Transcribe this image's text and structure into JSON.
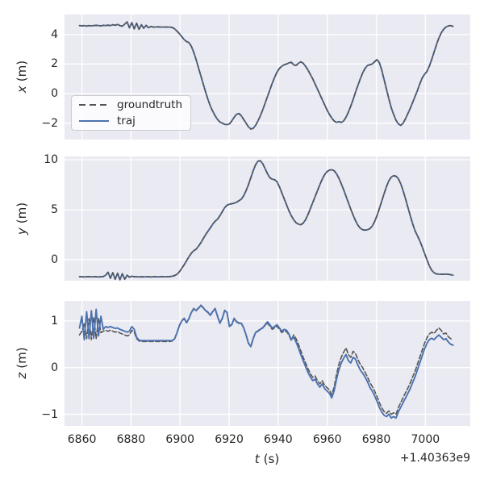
{
  "figure": {
    "background": "#ffffff",
    "axes_background": "#eaeaf2",
    "grid_color": "#ffffff",
    "text_color": "#262626",
    "xlabel": "t (s)",
    "xlabel_var": "t",
    "xlabel_unit": "(s)",
    "x_offset_text": "+1.40363e9",
    "xticks": [
      6860,
      6880,
      6900,
      6920,
      6940,
      6960,
      6980,
      7000
    ],
    "xlim": [
      6852.9,
      7018.3
    ],
    "x_start": 6859,
    "x_step": 0.97,
    "legend": {
      "position": "upper-left-of-first-subplot",
      "items": [
        {
          "label": "groundtruth",
          "color": "#555555",
          "style": "dashed"
        },
        {
          "label": "traj",
          "color": "#4c72b0",
          "style": "solid"
        }
      ]
    }
  },
  "chart_data": [
    {
      "id": "x",
      "type": "line",
      "ylabel": "x (m)",
      "ylabel_var": "x",
      "ylabel_unit": "(m)",
      "ylim": [
        -3.11,
        5.35
      ],
      "yticks": [
        -2,
        0,
        2,
        4
      ],
      "grid": true,
      "series": [
        {
          "name": "groundtruth",
          "style": "dashed",
          "color": "#555555",
          "values": null,
          "note": "overlaps traj"
        },
        {
          "name": "traj",
          "style": "solid",
          "color": "#4c72b0",
          "values": [
            4.6,
            4.58,
            4.6,
            4.57,
            4.6,
            4.58,
            4.6,
            4.62,
            4.6,
            4.58,
            4.62,
            4.6,
            4.63,
            4.6,
            4.66,
            4.62,
            4.68,
            4.6,
            4.56,
            4.7,
            4.85,
            4.45,
            4.8,
            4.38,
            4.76,
            4.35,
            4.66,
            4.42,
            4.62,
            4.46,
            4.54,
            4.5,
            4.5,
            4.52,
            4.5,
            4.5,
            4.5,
            4.5,
            4.5,
            4.47,
            4.38,
            4.22,
            4.05,
            3.85,
            3.65,
            3.52,
            3.45,
            3.2,
            2.8,
            2.3,
            1.75,
            1.2,
            0.65,
            0.1,
            -0.4,
            -0.85,
            -1.2,
            -1.5,
            -1.75,
            -1.92,
            -2.0,
            -2.08,
            -2.1,
            -2.05,
            -1.85,
            -1.6,
            -1.4,
            -1.35,
            -1.5,
            -1.75,
            -2.0,
            -2.25,
            -2.4,
            -2.35,
            -2.15,
            -1.85,
            -1.5,
            -1.1,
            -0.65,
            -0.2,
            0.25,
            0.7,
            1.1,
            1.45,
            1.7,
            1.85,
            1.95,
            2.0,
            2.08,
            2.12,
            1.95,
            1.9,
            2.05,
            2.15,
            2.05,
            1.85,
            1.6,
            1.3,
            1.0,
            0.65,
            0.3,
            -0.05,
            -0.4,
            -0.75,
            -1.1,
            -1.4,
            -1.65,
            -1.85,
            -1.95,
            -1.9,
            -1.95,
            -1.85,
            -1.6,
            -1.25,
            -0.85,
            -0.4,
            0.1,
            0.55,
            1.0,
            1.4,
            1.7,
            1.9,
            1.95,
            2.0,
            2.15,
            2.3,
            2.1,
            1.6,
            0.95,
            0.3,
            -0.35,
            -0.95,
            -1.4,
            -1.8,
            -2.05,
            -2.15,
            -2.0,
            -1.7,
            -1.35,
            -1.0,
            -0.6,
            -0.2,
            0.2,
            0.65,
            1.05,
            1.3,
            1.5,
            1.85,
            2.3,
            2.8,
            3.3,
            3.75,
            4.1,
            4.35,
            4.5,
            4.58,
            4.6,
            4.55
          ]
        }
      ]
    },
    {
      "id": "y",
      "type": "line",
      "ylabel": "y (m)",
      "ylabel_var": "y",
      "ylabel_unit": "(m)",
      "ylim": [
        -2.1,
        10.32
      ],
      "yticks": [
        0,
        5,
        10
      ],
      "grid": true,
      "series": [
        {
          "name": "groundtruth",
          "style": "dashed",
          "color": "#555555",
          "values": null,
          "note": "overlaps traj"
        },
        {
          "name": "traj",
          "style": "solid",
          "color": "#4c72b0",
          "values": [
            -1.7,
            -1.7,
            -1.72,
            -1.7,
            -1.7,
            -1.71,
            -1.7,
            -1.7,
            -1.72,
            -1.7,
            -1.68,
            -1.55,
            -1.25,
            -1.85,
            -1.3,
            -1.95,
            -1.35,
            -2.0,
            -1.4,
            -1.95,
            -1.55,
            -1.75,
            -1.65,
            -1.7,
            -1.7,
            -1.72,
            -1.7,
            -1.71,
            -1.7,
            -1.7,
            -1.72,
            -1.7,
            -1.7,
            -1.71,
            -1.7,
            -1.7,
            -1.7,
            -1.7,
            -1.68,
            -1.65,
            -1.58,
            -1.45,
            -1.2,
            -0.85,
            -0.5,
            -0.1,
            0.3,
            0.65,
            0.9,
            1.05,
            1.35,
            1.7,
            2.1,
            2.5,
            2.85,
            3.2,
            3.55,
            3.85,
            4.05,
            4.4,
            4.8,
            5.2,
            5.45,
            5.55,
            5.6,
            5.65,
            5.75,
            5.9,
            6.05,
            6.4,
            6.9,
            7.5,
            8.2,
            8.9,
            9.5,
            9.85,
            9.9,
            9.6,
            9.1,
            8.6,
            8.2,
            8.05,
            8.0,
            7.8,
            7.3,
            6.7,
            6.1,
            5.5,
            4.9,
            4.4,
            4.0,
            3.7,
            3.55,
            3.5,
            3.65,
            4.0,
            4.5,
            5.1,
            5.7,
            6.3,
            6.9,
            7.5,
            8.05,
            8.5,
            8.8,
            8.95,
            9.0,
            8.9,
            8.6,
            8.15,
            7.6,
            7.0,
            6.35,
            5.7,
            5.05,
            4.45,
            3.9,
            3.45,
            3.15,
            3.0,
            2.96,
            3.0,
            3.1,
            3.35,
            3.8,
            4.4,
            5.1,
            5.85,
            6.6,
            7.3,
            7.9,
            8.25,
            8.4,
            8.35,
            8.1,
            7.6,
            6.9,
            6.1,
            5.25,
            4.4,
            3.6,
            2.9,
            2.4,
            1.9,
            1.3,
            0.65,
            0.0,
            -0.6,
            -1.05,
            -1.3,
            -1.42,
            -1.45,
            -1.45,
            -1.45,
            -1.44,
            -1.46,
            -1.5,
            -1.55
          ]
        }
      ]
    },
    {
      "id": "z",
      "type": "line",
      "ylabel": "z (m)",
      "ylabel_var": "z",
      "ylabel_unit": "(m)",
      "ylim": [
        -1.25,
        1.43
      ],
      "yticks": [
        -1,
        0,
        1
      ],
      "grid": true,
      "series": [
        {
          "name": "groundtruth",
          "style": "dashed",
          "color": "#555555",
          "values": [
            0.7,
            0.78,
            0.95,
            0.62,
            1.05,
            0.6,
            1.08,
            0.62,
            1.05,
            0.75,
            0.78,
            0.8,
            0.78,
            0.8,
            0.78,
            0.76,
            0.77,
            0.74,
            0.72,
            0.7,
            0.68,
            0.7,
            0.8,
            0.76,
            0.62,
            0.57,
            0.56,
            0.56,
            0.56,
            0.56,
            0.56,
            0.56,
            0.56,
            0.56,
            0.56,
            0.56,
            0.56,
            0.56,
            0.56,
            0.57,
            0.62,
            0.76,
            0.91,
            1.01,
            1.06,
            0.97,
            1.06,
            1.19,
            1.27,
            1.23,
            1.28,
            1.34,
            1.29,
            1.23,
            1.19,
            1.13,
            1.21,
            1.27,
            1.11,
            0.96,
            1.06,
            1.23,
            1.19,
            0.89,
            0.93,
            1.06,
            0.99,
            0.96,
            0.96,
            0.86,
            0.71,
            0.53,
            0.46,
            0.63,
            0.76,
            0.79,
            0.83,
            0.86,
            0.9,
            0.95,
            0.89,
            0.82,
            0.85,
            0.89,
            0.82,
            0.75,
            0.79,
            0.77,
            0.7,
            0.58,
            0.7,
            0.62,
            0.5,
            0.36,
            0.22,
            0.1,
            -0.02,
            -0.13,
            -0.21,
            -0.18,
            -0.28,
            -0.35,
            -0.28,
            -0.38,
            -0.43,
            -0.48,
            -0.58,
            -0.42,
            -0.15,
            0.07,
            0.22,
            0.33,
            0.42,
            0.28,
            0.22,
            0.35,
            0.3,
            0.17,
            0.07,
            0.0,
            -0.1,
            -0.2,
            -0.32,
            -0.4,
            -0.5,
            -0.62,
            -0.75,
            -0.86,
            -0.94,
            -0.98,
            -0.93,
            -1.0,
            -0.97,
            -1.0,
            -0.86,
            -0.75,
            -0.64,
            -0.54,
            -0.44,
            -0.33,
            -0.2,
            -0.08,
            0.07,
            0.22,
            0.37,
            0.52,
            0.64,
            0.72,
            0.76,
            0.73,
            0.8,
            0.85,
            0.8,
            0.72,
            0.74,
            0.66,
            0.62,
            0.6
          ]
        },
        {
          "name": "traj",
          "style": "solid",
          "color": "#4c72b0",
          "values": [
            0.85,
            1.1,
            0.6,
            1.2,
            0.62,
            1.22,
            0.63,
            1.25,
            0.68,
            1.1,
            0.82,
            0.88,
            0.86,
            0.88,
            0.86,
            0.84,
            0.85,
            0.82,
            0.8,
            0.78,
            0.76,
            0.78,
            0.88,
            0.82,
            0.65,
            0.59,
            0.58,
            0.58,
            0.58,
            0.58,
            0.58,
            0.58,
            0.58,
            0.58,
            0.58,
            0.58,
            0.58,
            0.58,
            0.58,
            0.58,
            0.62,
            0.75,
            0.9,
            1.0,
            1.05,
            0.96,
            1.05,
            1.18,
            1.26,
            1.22,
            1.27,
            1.33,
            1.28,
            1.22,
            1.18,
            1.12,
            1.2,
            1.26,
            1.1,
            0.95,
            1.05,
            1.22,
            1.18,
            0.88,
            0.92,
            1.05,
            0.98,
            0.95,
            0.95,
            0.85,
            0.7,
            0.52,
            0.45,
            0.62,
            0.75,
            0.78,
            0.82,
            0.85,
            0.92,
            0.98,
            0.92,
            0.85,
            0.88,
            0.92,
            0.85,
            0.78,
            0.82,
            0.8,
            0.72,
            0.6,
            0.65,
            0.55,
            0.42,
            0.28,
            0.15,
            0.02,
            -0.1,
            -0.2,
            -0.28,
            -0.25,
            -0.35,
            -0.42,
            -0.35,
            -0.45,
            -0.5,
            -0.55,
            -0.65,
            -0.5,
            -0.25,
            -0.05,
            0.1,
            0.2,
            0.28,
            0.15,
            0.1,
            0.22,
            0.18,
            0.05,
            -0.05,
            -0.12,
            -0.2,
            -0.3,
            -0.42,
            -0.5,
            -0.6,
            -0.72,
            -0.85,
            -0.95,
            -1.02,
            -1.05,
            -1.0,
            -1.08,
            -1.05,
            -1.08,
            -0.95,
            -0.85,
            -0.75,
            -0.65,
            -0.55,
            -0.45,
            -0.32,
            -0.2,
            -0.05,
            0.1,
            0.25,
            0.4,
            0.52,
            0.6,
            0.63,
            0.6,
            0.65,
            0.7,
            0.65,
            0.6,
            0.62,
            0.55,
            0.5,
            0.48
          ]
        }
      ]
    }
  ]
}
